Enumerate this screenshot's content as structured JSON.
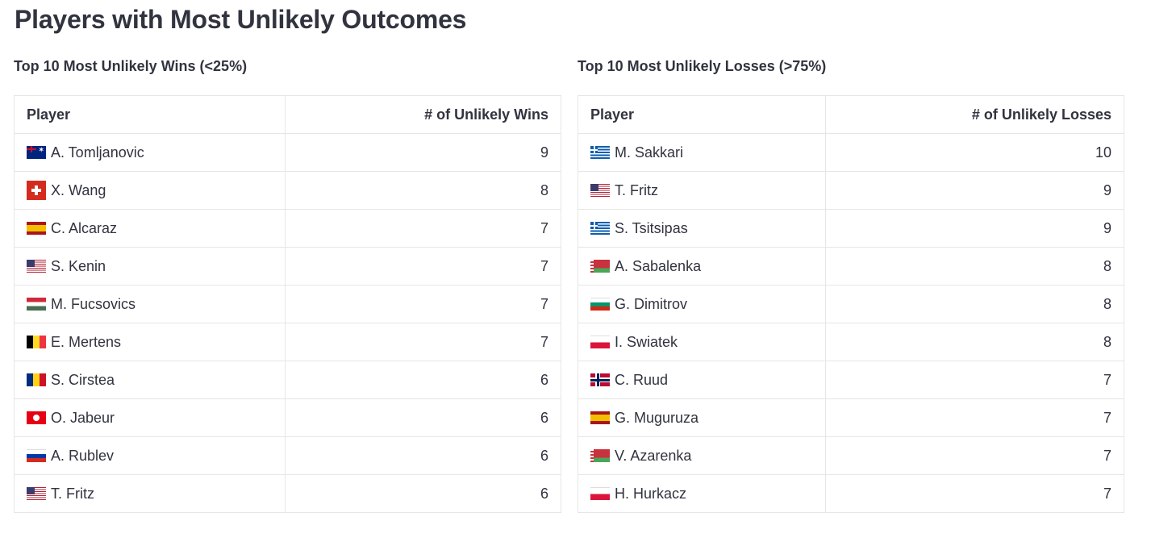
{
  "page": {
    "title": "Players with Most Unlikely Outcomes"
  },
  "wins": {
    "heading": "Top 10 Most Unlikely Wins (<25%)",
    "columns": {
      "player": "Player",
      "count": "# of Unlikely Wins"
    },
    "rows": [
      {
        "flag": "au",
        "player": "A. Tomljanovic",
        "count": "9"
      },
      {
        "flag": "ch",
        "player": "X. Wang",
        "count": "8"
      },
      {
        "flag": "es",
        "player": "C. Alcaraz",
        "count": "7"
      },
      {
        "flag": "us",
        "player": "S. Kenin",
        "count": "7"
      },
      {
        "flag": "hu",
        "player": "M. Fucsovics",
        "count": "7"
      },
      {
        "flag": "be",
        "player": "E. Mertens",
        "count": "7"
      },
      {
        "flag": "ro",
        "player": "S. Cirstea",
        "count": "6"
      },
      {
        "flag": "tn",
        "player": "O. Jabeur",
        "count": "6"
      },
      {
        "flag": "ru",
        "player": "A. Rublev",
        "count": "6"
      },
      {
        "flag": "us",
        "player": "T. Fritz",
        "count": "6"
      }
    ]
  },
  "losses": {
    "heading": "Top 10 Most Unlikely Losses (>75%)",
    "columns": {
      "player": "Player",
      "count": "# of Unlikely Losses"
    },
    "rows": [
      {
        "flag": "gr",
        "player": "M. Sakkari",
        "count": "10"
      },
      {
        "flag": "us",
        "player": "T. Fritz",
        "count": "9"
      },
      {
        "flag": "gr",
        "player": "S. Tsitsipas",
        "count": "9"
      },
      {
        "flag": "by",
        "player": "A. Sabalenka",
        "count": "8"
      },
      {
        "flag": "bg",
        "player": "G. Dimitrov",
        "count": "8"
      },
      {
        "flag": "pl",
        "player": "I. Swiatek",
        "count": "8"
      },
      {
        "flag": "no",
        "player": "C. Ruud",
        "count": "7"
      },
      {
        "flag": "es",
        "player": "G. Muguruza",
        "count": "7"
      },
      {
        "flag": "by",
        "player": "V. Azarenka",
        "count": "7"
      },
      {
        "flag": "pl",
        "player": "H. Hurkacz",
        "count": "7"
      }
    ]
  }
}
